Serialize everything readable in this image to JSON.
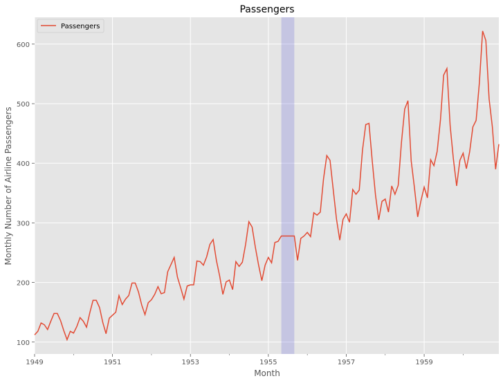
{
  "colors": {
    "background": "#E5E5E5",
    "grid": "#FFFFFF",
    "line": "#E24A33",
    "highlight": "#6666DD",
    "text": "#555555",
    "title": "#000000"
  },
  "chart_data": {
    "type": "line",
    "title": "Passengers",
    "xlabel": "Month",
    "ylabel": "Monthly Number of Airline Passengers",
    "legend": {
      "placement": "top-left",
      "entries": [
        "Passengers"
      ]
    },
    "grid": true,
    "x_range": [
      "1949-01",
      "1960-12"
    ],
    "ylim": [
      80,
      645
    ],
    "x_ticks": [
      "1949",
      "1951",
      "1953",
      "1955",
      "1957",
      "1959"
    ],
    "y_ticks": [
      100,
      200,
      300,
      400,
      500,
      600
    ],
    "highlight_span": {
      "start": "1955-05",
      "end": "1955-09"
    },
    "series": [
      {
        "name": "Passengers",
        "start": "1949-01",
        "frequency": "monthly",
        "values": [
          112,
          118,
          132,
          129,
          121,
          135,
          148,
          148,
          136,
          119,
          104,
          118,
          115,
          126,
          141,
          135,
          125,
          149,
          170,
          170,
          158,
          133,
          114,
          140,
          145,
          150,
          178,
          163,
          172,
          178,
          199,
          199,
          184,
          162,
          146,
          166,
          171,
          180,
          193,
          181,
          183,
          218,
          230,
          242,
          209,
          191,
          172,
          194,
          196,
          196,
          236,
          235,
          229,
          243,
          264,
          272,
          237,
          211,
          180,
          201,
          204,
          188,
          235,
          227,
          234,
          264,
          302,
          293,
          259,
          229,
          203,
          229,
          242,
          233,
          267,
          269,
          278,
          278,
          278,
          278,
          278,
          237,
          274,
          278,
          284,
          277,
          317,
          313,
          318,
          374,
          413,
          405,
          355,
          306,
          271,
          306,
          315,
          301,
          356,
          348,
          355,
          422,
          465,
          467,
          404,
          347,
          305,
          336,
          340,
          318,
          362,
          348,
          363,
          435,
          491,
          505,
          404,
          359,
          310,
          337,
          360,
          342,
          406,
          396,
          420,
          472,
          548,
          559,
          463,
          407,
          362,
          405,
          417,
          391,
          419,
          461,
          472,
          535,
          622,
          606,
          508,
          461,
          390,
          432
        ]
      }
    ]
  }
}
